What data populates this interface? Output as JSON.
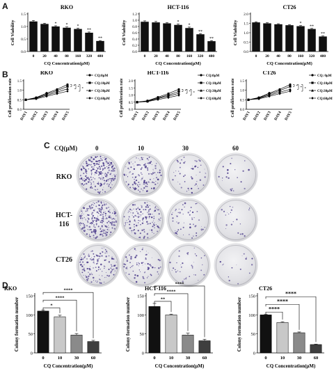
{
  "panels": {
    "a": "A",
    "b": "B",
    "c": "C",
    "d": "D"
  },
  "colors": {
    "bar_black": "#111111",
    "bar_dark_gray": "#3f3f3f",
    "bar_gray": "#8a8a8a",
    "bar_light": "#c8c8c8",
    "colony": "#4a3a8a",
    "plate": "#e4e4e8"
  },
  "chart_data": [
    {
      "id": "A-RKO",
      "type": "bar",
      "title": "RKO",
      "xlabel": "CQ Concentration(μM)",
      "ylabel": "Cell Viability",
      "categories": [
        "0",
        "20",
        "40",
        "80",
        "160",
        "320",
        "480"
      ],
      "values": [
        1.2,
        1.1,
        1.0,
        0.95,
        0.9,
        0.75,
        0.42
      ],
      "errors": [
        0.04,
        0.03,
        0.03,
        0.03,
        0.03,
        0.03,
        0.02
      ],
      "significance": [
        "",
        "",
        "*",
        "*",
        "*",
        "**",
        "**"
      ],
      "ylim": [
        0,
        1.5
      ],
      "yticks": [
        "0.0",
        "0.5",
        "1.0",
        "1.5"
      ]
    },
    {
      "id": "A-HCT116",
      "type": "bar",
      "title": "HCT-116",
      "xlabel": "CQ Concentration(μM)",
      "ylabel": "Cell Viability",
      "categories": [
        "0",
        "20",
        "40",
        "80",
        "160",
        "320",
        "480"
      ],
      "values": [
        0.95,
        0.93,
        0.9,
        0.85,
        0.75,
        0.55,
        0.33
      ],
      "errors": [
        0.03,
        0.03,
        0.02,
        0.03,
        0.03,
        0.02,
        0.02
      ],
      "significance": [
        "",
        "",
        "",
        "*",
        "*",
        "**",
        "**"
      ],
      "ylim": [
        0,
        1.2
      ],
      "yticks": [
        "0.0",
        "0.2",
        "0.4",
        "0.6",
        "0.8",
        "1.0",
        "1.2"
      ]
    },
    {
      "id": "A-CT26",
      "type": "bar",
      "title": "CT26",
      "xlabel": "CQ Concentration(μM)",
      "ylabel": "Cell Viability",
      "categories": [
        "0",
        "20",
        "40",
        "80",
        "160",
        "320",
        "480"
      ],
      "values": [
        1.55,
        1.5,
        1.45,
        1.4,
        1.35,
        1.2,
        0.8
      ],
      "errors": [
        0.03,
        0.03,
        0.03,
        0.03,
        0.03,
        0.03,
        0.03
      ],
      "significance": [
        "",
        "",
        "",
        "",
        "*",
        "**",
        "**"
      ],
      "ylim": [
        0,
        2.0
      ],
      "yticks": [
        "0.0",
        "0.5",
        "1.0",
        "1.5",
        "2.0"
      ]
    },
    {
      "id": "B-RKO",
      "type": "line",
      "title": "RKO",
      "ylabel": "Cell proliferation rate",
      "categories": [
        "DAY1",
        "DAY2",
        "DAY3",
        "DAY4",
        "DAY5"
      ],
      "series": [
        {
          "name": "CQ:0μM",
          "marker": "circle",
          "values": [
            0.5,
            0.62,
            0.85,
            1.05,
            1.3
          ]
        },
        {
          "name": "CQ:10μM",
          "marker": "square",
          "values": [
            0.5,
            0.6,
            0.8,
            0.98,
            1.2
          ]
        },
        {
          "name": "CQ:30μM",
          "marker": "triangle",
          "values": [
            0.5,
            0.58,
            0.74,
            0.9,
            1.08
          ]
        },
        {
          "name": "CQ:60μM",
          "marker": "diamond",
          "values": [
            0.5,
            0.55,
            0.68,
            0.82,
            0.95
          ]
        }
      ],
      "significance": [
        "*",
        "*",
        "*"
      ],
      "ylim": [
        0,
        1.5
      ],
      "yticks": [
        "0.0",
        "0.5",
        "1.0",
        "1.5"
      ],
      "legend": "right"
    },
    {
      "id": "B-HCT116",
      "type": "line",
      "title": "HCT-116",
      "ylabel": "Cell proliferation rate",
      "categories": [
        "DAY1",
        "DAY2",
        "DAY3",
        "DAY4",
        "DAY5"
      ],
      "series": [
        {
          "name": "CQ:0μM",
          "marker": "circle",
          "values": [
            0.5,
            0.6,
            0.85,
            1.1,
            1.4
          ]
        },
        {
          "name": "CQ:10μM",
          "marker": "square",
          "values": [
            0.5,
            0.58,
            0.8,
            1.0,
            1.25
          ]
        },
        {
          "name": "CQ:30μM",
          "marker": "triangle",
          "values": [
            0.5,
            0.56,
            0.75,
            0.92,
            1.12
          ]
        },
        {
          "name": "CQ:60μM",
          "marker": "diamond",
          "values": [
            0.5,
            0.54,
            0.68,
            0.82,
            0.98
          ]
        }
      ],
      "significance": [
        "*",
        "*",
        "*"
      ],
      "ylim": [
        0,
        2.0
      ],
      "yticks": [
        "0.0",
        "0.5",
        "1.0",
        "1.5",
        "2.0"
      ],
      "legend": "right"
    },
    {
      "id": "B-CT26",
      "type": "line",
      "title": "CT26",
      "ylabel": "Cell proliferation rate",
      "categories": [
        "DAY1",
        "DAY2",
        "DAY3",
        "DAY4",
        "DAY5"
      ],
      "series": [
        {
          "name": "CQ: 0μM",
          "marker": "circle",
          "values": [
            0.5,
            0.62,
            0.85,
            1.05,
            1.3
          ]
        },
        {
          "name": "CQ:10μM",
          "marker": "square",
          "values": [
            0.5,
            0.6,
            0.8,
            0.98,
            1.2
          ]
        },
        {
          "name": "CQ:30μM",
          "marker": "triangle",
          "values": [
            0.5,
            0.58,
            0.74,
            0.9,
            1.05
          ]
        },
        {
          "name": "CQ:60μM",
          "marker": "diamond",
          "values": [
            0.5,
            0.55,
            0.68,
            0.82,
            0.95
          ]
        }
      ],
      "significance": [
        "*",
        "*",
        "*"
      ],
      "ylim": [
        0,
        1.5
      ],
      "yticks": [
        "0.0",
        "0.5",
        "1.0",
        "1.5"
      ],
      "legend": "right"
    },
    {
      "id": "D-RKO",
      "type": "bar",
      "title": "RKO",
      "xlabel": "CQ Concentration(μM)",
      "ylabel": "Colony formation number",
      "categories": [
        "0",
        "10",
        "30",
        "60"
      ],
      "values": [
        110,
        95,
        47,
        30
      ],
      "errors": [
        3,
        4,
        4,
        3
      ],
      "brackets": [
        {
          "from": 0,
          "to": 1,
          "label": "*"
        },
        {
          "from": 0,
          "to": 2,
          "label": "****"
        },
        {
          "from": 0,
          "to": 3,
          "label": "****"
        }
      ],
      "ylim": [
        0,
        150
      ],
      "yticks": [
        "0",
        "50",
        "100",
        "150"
      ]
    },
    {
      "id": "D-HCT116",
      "type": "bar",
      "title": "HCT-116",
      "xlabel": "CQ Concentration(μM)",
      "ylabel": "Colony formation number",
      "categories": [
        "0",
        "10",
        "30",
        "60"
      ],
      "values": [
        122,
        100,
        47,
        32
      ],
      "errors": [
        8,
        2,
        5,
        4
      ],
      "brackets": [
        {
          "from": 0,
          "to": 1,
          "label": "**"
        },
        {
          "from": 0,
          "to": 2,
          "label": "****"
        },
        {
          "from": 0,
          "to": 3,
          "label": "****"
        }
      ],
      "ylim": [
        0,
        150
      ],
      "yticks": [
        "0",
        "50",
        "100",
        "150"
      ]
    },
    {
      "id": "D-CT26",
      "type": "bar",
      "title": "CT26",
      "xlabel": "CQ Concentration(μM)",
      "ylabel": "Colony formation number",
      "categories": [
        "0",
        "10",
        "30",
        "60"
      ],
      "values": [
        100,
        80,
        53,
        22
      ],
      "errors": [
        2,
        2,
        2,
        1
      ],
      "brackets": [
        {
          "from": 0,
          "to": 1,
          "label": "****"
        },
        {
          "from": 0,
          "to": 2,
          "label": "****"
        },
        {
          "from": 0,
          "to": 3,
          "label": "****"
        }
      ],
      "ylim": [
        0,
        150
      ],
      "yticks": [
        "0",
        "50",
        "100",
        "150"
      ]
    }
  ],
  "colony_panel": {
    "conc_label": "CQ(μM)",
    "columns": [
      "0",
      "10",
      "30",
      "60"
    ],
    "rows": [
      "RKO",
      "HCT-\n116",
      "CT26"
    ],
    "colony_density": [
      [
        1.0,
        0.55,
        0.2,
        0.08
      ],
      [
        1.0,
        0.6,
        0.22,
        0.08
      ],
      [
        0.55,
        0.3,
        0.14,
        0.06
      ]
    ]
  }
}
